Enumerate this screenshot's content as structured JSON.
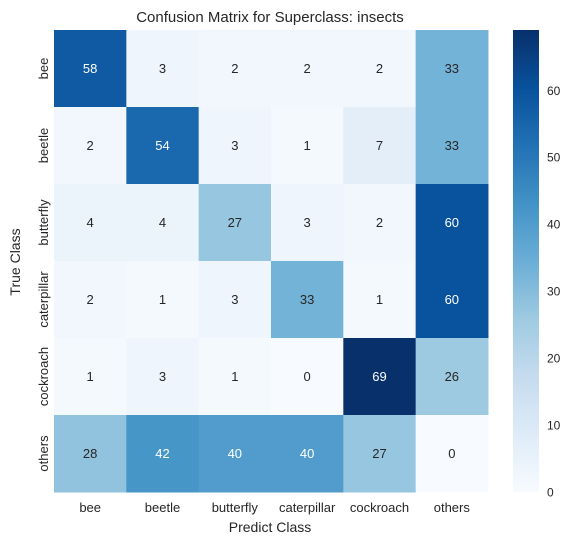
{
  "chart_data": {
    "type": "heatmap",
    "title": "Confusion Matrix for Superclass: insects",
    "xlabel": "Predict Class",
    "ylabel": "True Class",
    "x_categories": [
      "bee",
      "beetle",
      "butterfly",
      "caterpillar",
      "cockroach",
      "others"
    ],
    "y_categories": [
      "bee",
      "beetle",
      "butterfly",
      "caterpillar",
      "cockroach",
      "others"
    ],
    "values": [
      [
        58,
        3,
        2,
        2,
        2,
        33
      ],
      [
        2,
        54,
        3,
        1,
        7,
        33
      ],
      [
        4,
        4,
        27,
        3,
        2,
        60
      ],
      [
        2,
        1,
        3,
        33,
        1,
        60
      ],
      [
        1,
        3,
        1,
        0,
        69,
        26
      ],
      [
        28,
        42,
        40,
        40,
        27,
        0
      ]
    ],
    "colorbar": {
      "min": 0,
      "max": 69,
      "ticks": [
        0,
        10,
        20,
        30,
        40,
        50,
        60
      ],
      "colormap": "Blues",
      "colors": [
        "#f7fbff",
        "#deebf7",
        "#c6dbef",
        "#9ecae1",
        "#6baed6",
        "#4292c6",
        "#2171b5",
        "#08519c",
        "#08306b"
      ]
    },
    "annotations": "cell counts"
  }
}
